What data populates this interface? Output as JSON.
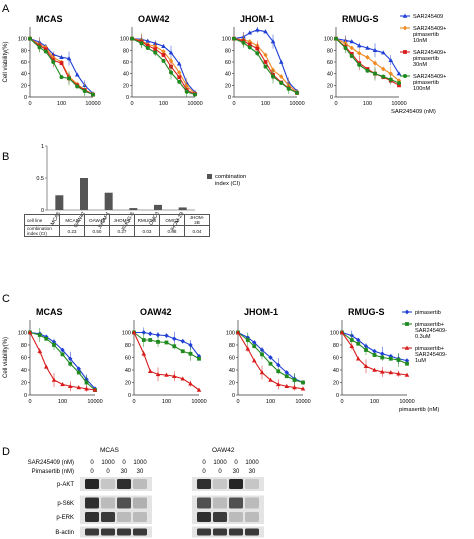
{
  "panel_labels": {
    "a": "A",
    "b": "B",
    "c": "C",
    "d": "D"
  },
  "colors": {
    "blue": "#1f3fd6",
    "orange": "#ef8a22",
    "red": "#d81c1c",
    "green": "#1f8a1f",
    "gray": "#555555"
  },
  "chart_data": [
    {
      "panel": "A",
      "type": "line",
      "log_x": true,
      "ylabel": "Cell viability(%)",
      "ylim": [
        0,
        120
      ],
      "yticks": [
        "0",
        "20",
        "40",
        "60",
        "80",
        "100"
      ],
      "xlabel": "SAR245409 (nM)",
      "legend": [
        "SAR245409",
        "SAR245409+ pimasertib 10nM",
        "SAR245409+ pimasertib 30nM",
        "SAR245409+ pimasertib 100nM"
      ],
      "legend_position": "right",
      "x": [
        1,
        4,
        10,
        30,
        100,
        300,
        1000,
        3000,
        10000
      ],
      "subplots": [
        {
          "title": "MCAS",
          "xticks": [
            "0",
            "100",
            "10000"
          ],
          "series": [
            {
              "name": "SAR245409",
              "color": "blue",
              "values": [
                100,
                94,
                87,
                73,
                68,
                66,
                38,
                20,
                6
              ]
            },
            {
              "name": "SAR245409+ pimasertib 10nM",
              "color": "orange",
              "values": [
                100,
                90,
                85,
                68,
                60,
                35,
                22,
                12,
                5
              ]
            },
            {
              "name": "SAR245409+ pimasertib 30nM",
              "color": "red",
              "values": [
                100,
                88,
                82,
                63,
                58,
                32,
                20,
                12,
                4
              ]
            },
            {
              "name": "SAR245409+ pimasertib 100nM",
              "color": "green",
              "values": [
                100,
                85,
                78,
                60,
                34,
                32,
                18,
                10,
                4
              ]
            }
          ]
        },
        {
          "title": "OAW42",
          "xticks": [
            "0",
            "100",
            "10000"
          ],
          "series": [
            {
              "name": "SAR245409",
              "color": "blue",
              "values": [
                100,
                99,
                96,
                92,
                87,
                76,
                57,
                24,
                8
              ]
            },
            {
              "name": "SAR245409+ pimasertib 10nM",
              "color": "orange",
              "values": [
                100,
                97,
                90,
                87,
                78,
                62,
                42,
                19,
                6
              ]
            },
            {
              "name": "SAR245409+ pimasertib 30nM",
              "color": "red",
              "values": [
                100,
                95,
                88,
                82,
                72,
                52,
                34,
                12,
                5
              ]
            },
            {
              "name": "SAR245409+ pimasertib 100nM",
              "color": "green",
              "values": [
                100,
                92,
                84,
                76,
                62,
                42,
                26,
                9,
                4
              ]
            }
          ]
        },
        {
          "title": "JHOM-1",
          "xticks": [
            "0",
            "100",
            "10000"
          ],
          "series": [
            {
              "name": "SAR245409",
              "color": "blue",
              "values": [
                100,
                103,
                110,
                115,
                112,
                95,
                60,
                25,
                10
              ]
            },
            {
              "name": "SAR245409+ pimasertib 10nM",
              "color": "orange",
              "values": [
                100,
                98,
                95,
                88,
                72,
                46,
                35,
                20,
                8
              ]
            },
            {
              "name": "SAR245409+ pimasertib 30nM",
              "color": "red",
              "values": [
                100,
                96,
                90,
                83,
                60,
                38,
                25,
                15,
                7
              ]
            },
            {
              "name": "SAR245409+ pimasertib 100nM",
              "color": "green",
              "values": [
                100,
                93,
                85,
                75,
                52,
                35,
                24,
                14,
                7
              ]
            }
          ]
        },
        {
          "title": "RMUG-S",
          "xticks": [
            "0",
            "100",
            "10000"
          ],
          "series": [
            {
              "name": "SAR245409",
              "color": "blue",
              "values": [
                100,
                97,
                95,
                88,
                84,
                80,
                76,
                63,
                40
              ]
            },
            {
              "name": "SAR245409+ pimasertib 10nM",
              "color": "orange",
              "values": [
                100,
                92,
                84,
                75,
                68,
                58,
                48,
                40,
                28
              ]
            },
            {
              "name": "SAR245409+ pimasertib 30nM",
              "color": "red",
              "values": [
                100,
                86,
                74,
                58,
                48,
                40,
                34,
                28,
                20
              ]
            },
            {
              "name": "SAR245409+ pimasertib 100nM",
              "color": "green",
              "values": [
                100,
                84,
                70,
                55,
                45,
                40,
                35,
                30,
                24
              ]
            }
          ]
        }
      ]
    },
    {
      "panel": "B",
      "type": "bar",
      "categories": [
        "MCAS",
        "OAW42",
        "JHOM-1",
        "RMUG-S",
        "OMC3",
        "JHOM-2B"
      ],
      "values": [
        0.23,
        0.5,
        0.27,
        0.03,
        0.08,
        0.04
      ],
      "ylim": [
        0,
        1
      ],
      "yticks": [
        "0",
        "0.5",
        "1"
      ],
      "legend": [
        "combination index (CI)"
      ]
    },
    {
      "panel": "C",
      "type": "line",
      "log_x": true,
      "ylabel": "Cell viability(%)",
      "ylim": [
        0,
        120
      ],
      "yticks": [
        "0",
        "20",
        "40",
        "60",
        "80",
        "100"
      ],
      "xlabel": "pimasertib (nM)",
      "legend": [
        "pimasertib",
        "pimasertib+ SAR245409- 0.3uM",
        "pimasertib+ SAR245409- 1uM"
      ],
      "legend_position": "right",
      "x": [
        1,
        4,
        10,
        30,
        100,
        300,
        1000,
        3000,
        10000
      ],
      "subplots": [
        {
          "title": "MCAS",
          "xticks": [
            "0",
            "100",
            "10000"
          ],
          "series": [
            {
              "name": "pimasertib",
              "color": "blue",
              "values": [
                100,
                98,
                93,
                85,
                72,
                58,
                42,
                25,
                10
              ]
            },
            {
              "name": "pimasertib+ SAR245409- 0.3uM",
              "color": "green",
              "values": [
                100,
                96,
                90,
                80,
                65,
                50,
                36,
                20,
                8
              ]
            },
            {
              "name": "pimasertib+ SAR245409- 1uM",
              "color": "red",
              "values": [
                100,
                70,
                45,
                24,
                17,
                14,
                12,
                10,
                8
              ]
            }
          ]
        },
        {
          "title": "OAW42",
          "xticks": [
            "0",
            "100",
            "10000"
          ],
          "series": [
            {
              "name": "pimasertib",
              "color": "blue",
              "values": [
                100,
                100,
                98,
                96,
                95,
                90,
                86,
                80,
                62
              ]
            },
            {
              "name": "pimasertib+ SAR245409- 0.3uM",
              "color": "green",
              "values": [
                100,
                88,
                88,
                85,
                84,
                78,
                70,
                66,
                58
              ]
            },
            {
              "name": "pimasertib+ SAR245409- 1uM",
              "color": "red",
              "values": [
                100,
                66,
                38,
                33,
                32,
                30,
                26,
                18,
                8
              ]
            }
          ]
        },
        {
          "title": "JHOM-1",
          "xticks": [
            "0",
            "100",
            "10000"
          ],
          "series": [
            {
              "name": "pimasertib",
              "color": "blue",
              "values": [
                100,
                92,
                84,
                72,
                60,
                48,
                36,
                26,
                20
              ]
            },
            {
              "name": "pimasertib+ SAR245409- 0.3uM",
              "color": "green",
              "values": [
                100,
                88,
                78,
                65,
                50,
                38,
                30,
                24,
                20
              ]
            },
            {
              "name": "pimasertib+ SAR245409- 1uM",
              "color": "red",
              "values": [
                100,
                74,
                55,
                36,
                24,
                17,
                14,
                12,
                10
              ]
            }
          ]
        },
        {
          "title": "RMUG-S",
          "xticks": [
            "0",
            "100",
            "10000"
          ],
          "series": [
            {
              "name": "pimasertib",
              "color": "blue",
              "values": [
                100,
                95,
                88,
                78,
                70,
                66,
                62,
                58,
                55
              ]
            },
            {
              "name": "pimasertib+ SAR245409- 0.3uM",
              "color": "green",
              "values": [
                100,
                88,
                82,
                72,
                64,
                60,
                58,
                56,
                50
              ]
            },
            {
              "name": "pimasertib+ SAR245409- 1uM",
              "color": "red",
              "values": [
                100,
                78,
                58,
                46,
                40,
                37,
                36,
                34,
                32
              ]
            }
          ]
        }
      ]
    }
  ],
  "table_b": {
    "header": "cell line",
    "row_label": "combination index (CI)",
    "cells": [
      "MCAS",
      "OAW42",
      "JHOM-1",
      "RMUG-S",
      "OMC3",
      "JHOM-2B"
    ],
    "values": [
      "0.23",
      "0.50",
      "0.27",
      "0.03",
      "0.08",
      "0.04"
    ]
  },
  "western": {
    "cell_lines": [
      "MCAS",
      "OAW42"
    ],
    "row_labels": [
      "SAR245409 (nM)",
      "Pimasertib (nM)"
    ],
    "sar_values": [
      "0",
      "1000",
      "0",
      "1000"
    ],
    "pim_values": [
      "0",
      "0",
      "30",
      "30"
    ],
    "proteins": [
      "p-AKT",
      "p-S6K",
      "p-ERK",
      "B-actin"
    ],
    "band_intensity": {
      "MCAS": [
        [
          0.9,
          0.15,
          0.85,
          0.2
        ],
        [
          0.85,
          0.2,
          0.7,
          0.25
        ],
        [
          0.85,
          0.8,
          0.2,
          0.2
        ],
        [
          0.8,
          0.8,
          0.8,
          0.8
        ]
      ],
      "OAW42": [
        [
          0.85,
          0.15,
          0.9,
          0.15
        ],
        [
          0.7,
          0.2,
          0.7,
          0.2
        ],
        [
          0.85,
          0.8,
          0.2,
          0.2
        ],
        [
          0.8,
          0.8,
          0.8,
          0.8
        ]
      ]
    }
  }
}
